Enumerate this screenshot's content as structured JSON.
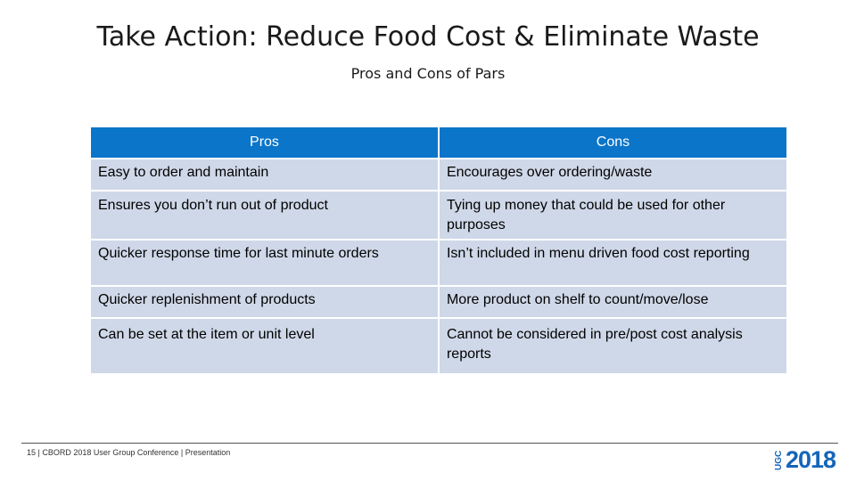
{
  "slide": {
    "title": "Take Action:  Reduce Food Cost & Eliminate Waste",
    "subtitle": "Pros and Cons of Pars"
  },
  "table": {
    "headers": [
      "Pros",
      "Cons"
    ],
    "rows": [
      {
        "pro": "Easy to order and maintain",
        "con": "Encourages over ordering/waste"
      },
      {
        "pro": "Ensures you don’t run out of product",
        "con": "Tying up money that could be used for other purposes"
      },
      {
        "pro": "Quicker response time for last minute orders",
        "con": "Isn’t included in menu driven food cost reporting"
      },
      {
        "pro": "Quicker replenishment of products",
        "con": "More product on shelf to count/move/lose"
      },
      {
        "pro": "Can be set at the item or unit level",
        "con": "Cannot be considered in pre/post cost analysis reports"
      }
    ]
  },
  "footer": {
    "text": "15 |  CBORD 2018 User Group Conference | Presentation"
  },
  "logo": {
    "side_text": "UGC",
    "year": "2018",
    "color": "#1565b8"
  },
  "colors": {
    "header_bg": "#0b75c9",
    "cell_bg": "#cfd8e8"
  }
}
